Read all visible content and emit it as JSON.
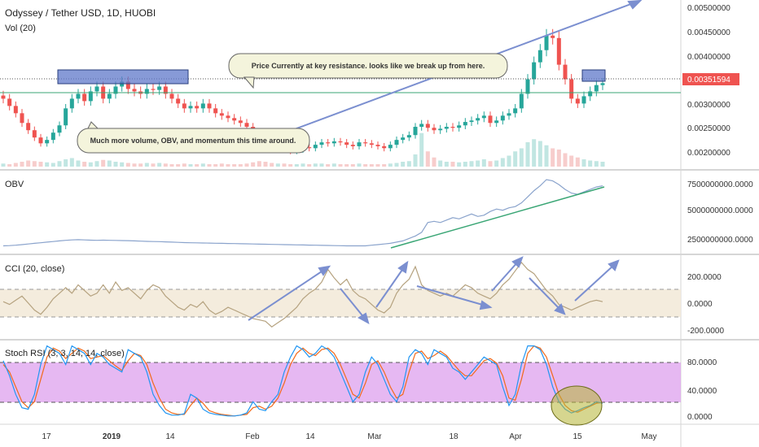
{
  "header": {
    "title": "Odyssey / Tether USD, 1D, HUOBI",
    "volume_label": "Vol (20)"
  },
  "price_tag": "0.00351594",
  "annotations": {
    "resistance_note": "Price Currently at key resistance. looks like we break up from here.",
    "volume_note": "Much more volume, OBV, and momentum this time around."
  },
  "indicators": {
    "obv_label": "OBV",
    "cci_label": "CCI (20, close)",
    "stoch_label": "Stoch RSI (3, 3, 14, 14, close)"
  },
  "time_axis": [
    "17",
    "2019",
    "14",
    "Feb",
    "14",
    "Mar",
    "18",
    "Apr",
    "15",
    "May"
  ],
  "colors": {
    "up": "#26a69a",
    "down": "#ef5350",
    "trend_blue": "#7b8fd0",
    "trend_green": "#3aa675",
    "cci_band": "#f3ead9",
    "stoch_band": "#dda0ee",
    "price_tag": "#ef5350"
  },
  "chart_data": [
    {
      "type": "candlestick",
      "panel": "price",
      "y_ticks": [
        "0.00500000",
        "0.00450000",
        "0.00400000",
        "0.00300000",
        "0.00250000",
        "0.00200000"
      ],
      "ylim": [
        0.0018,
        0.0052
      ],
      "key_levels": [
        0.0035,
        0.0032
      ],
      "last_price": 0.00351594,
      "closes": [
        0.0032,
        0.00305,
        0.0029,
        0.0027,
        0.00255,
        0.0024,
        0.00228,
        0.00235,
        0.0025,
        0.00265,
        0.003,
        0.0032,
        0.0033,
        0.00315,
        0.00335,
        0.00345,
        0.0032,
        0.0033,
        0.00345,
        0.00355,
        0.0034,
        0.00335,
        0.0033,
        0.0034,
        0.00338,
        0.00345,
        0.0033,
        0.0032,
        0.0031,
        0.003,
        0.00305,
        0.003,
        0.0031,
        0.003,
        0.0029,
        0.00285,
        0.0028,
        0.00275,
        0.0027,
        0.00262,
        0.00245,
        0.00228,
        0.0022,
        0.00215,
        0.0022,
        0.00218,
        0.00212,
        0.00215,
        0.0022,
        0.00218,
        0.00225,
        0.0023,
        0.00228,
        0.00232,
        0.0023,
        0.00225,
        0.00222,
        0.0023,
        0.00228,
        0.00225,
        0.00222,
        0.00218,
        0.00225,
        0.00235,
        0.0024,
        0.00245,
        0.00262,
        0.00268,
        0.0026,
        0.00255,
        0.00258,
        0.00262,
        0.0026,
        0.00265,
        0.00272,
        0.00275,
        0.0028,
        0.00285,
        0.0027,
        0.00275,
        0.00285,
        0.0029,
        0.003,
        0.0033,
        0.0036,
        0.00395,
        0.0042,
        0.0045,
        0.00445,
        0.0039,
        0.0036,
        0.0032,
        0.0031,
        0.00325,
        0.00335,
        0.00348,
        0.00352
      ],
      "volume_ylim": [
        0,
        100
      ],
      "volume": [
        5,
        4,
        6,
        8,
        10,
        9,
        8,
        7,
        6,
        9,
        12,
        14,
        10,
        8,
        7,
        9,
        11,
        10,
        8,
        7,
        6,
        5,
        5,
        6,
        5,
        6,
        5,
        4,
        4,
        5,
        4,
        4,
        5,
        4,
        4,
        5,
        4,
        4,
        4,
        5,
        7,
        9,
        8,
        6,
        5,
        5,
        4,
        4,
        5,
        4,
        5,
        5,
        4,
        5,
        4,
        4,
        4,
        5,
        4,
        4,
        4,
        4,
        5,
        6,
        8,
        9,
        20,
        55,
        25,
        15,
        10,
        8,
        8,
        7,
        8,
        9,
        10,
        12,
        9,
        10,
        14,
        18,
        25,
        30,
        40,
        45,
        42,
        35,
        30,
        28,
        22,
        18,
        15,
        12,
        10,
        9,
        8
      ]
    },
    {
      "type": "line",
      "panel": "obv",
      "y_ticks": [
        "7500000000.0000",
        "5000000000.0000",
        "2500000000.0000"
      ],
      "ylim": [
        1800000000,
        8300000000
      ],
      "values": [
        2300000000,
        2320000000,
        2350000000,
        2400000000,
        2450000000,
        2500000000,
        2550000000,
        2600000000,
        2650000000,
        2700000000,
        2750000000,
        2780000000,
        2800000000,
        2780000000,
        2760000000,
        2750000000,
        2760000000,
        2750000000,
        2740000000,
        2730000000,
        2720000000,
        2700000000,
        2680000000,
        2660000000,
        2650000000,
        2640000000,
        2620000000,
        2600000000,
        2580000000,
        2560000000,
        2550000000,
        2540000000,
        2530000000,
        2520000000,
        2510000000,
        2500000000,
        2490000000,
        2480000000,
        2470000000,
        2460000000,
        2450000000,
        2440000000,
        2430000000,
        2420000000,
        2410000000,
        2400000000,
        2390000000,
        2380000000,
        2370000000,
        2360000000,
        2350000000,
        2340000000,
        2330000000,
        2320000000,
        2310000000,
        2300000000,
        2300000000,
        2300000000,
        2300000000,
        2350000000,
        2400000000,
        2450000000,
        2500000000,
        2600000000,
        2700000000,
        2900000000,
        3100000000,
        3400000000,
        4200000000,
        4300000000,
        4200000000,
        4400000000,
        4600000000,
        4500000000,
        4700000000,
        4900000000,
        4700000000,
        4800000000,
        5100000000,
        5300000000,
        5200000000,
        5400000000,
        5500000000,
        5800000000,
        6300000000,
        6800000000,
        7200000000,
        7700000000,
        7600000000,
        7300000000,
        6900000000,
        6600000000,
        6500000000,
        6700000000,
        6900000000,
        7100000000,
        7200000000
      ]
    },
    {
      "type": "line",
      "panel": "cci",
      "y_ticks": [
        "200.0000",
        "0.0000",
        "-200.0000"
      ],
      "ylim": [
        -260,
        320
      ],
      "band": [
        -100,
        100
      ],
      "values": [
        0,
        -20,
        10,
        40,
        -10,
        -60,
        -90,
        -40,
        20,
        60,
        100,
        60,
        120,
        80,
        40,
        60,
        120,
        60,
        140,
        80,
        100,
        60,
        20,
        80,
        120,
        100,
        40,
        0,
        -40,
        -60,
        -20,
        -40,
        0,
        -60,
        -90,
        -70,
        -40,
        -60,
        -80,
        -100,
        -120,
        -130,
        -140,
        -180,
        -150,
        -120,
        -80,
        -40,
        20,
        60,
        90,
        140,
        230,
        170,
        120,
        160,
        80,
        40,
        20,
        -20,
        -60,
        -80,
        -40,
        60,
        120,
        160,
        250,
        120,
        80,
        60,
        40,
        60,
        40,
        80,
        120,
        100,
        60,
        40,
        20,
        60,
        120,
        160,
        220,
        280,
        230,
        200,
        140,
        80,
        40,
        -20,
        -40,
        -60,
        -40,
        -20,
        0,
        10,
        0
      ]
    },
    {
      "type": "line",
      "panel": "stoch_rsi",
      "y_ticks": [
        "80.0000",
        "40.0000",
        "0.0000"
      ],
      "ylim": [
        -8,
        100
      ],
      "band": [
        20,
        80
      ],
      "series_k": [
        75,
        55,
        30,
        12,
        10,
        30,
        70,
        95,
        90,
        85,
        70,
        95,
        90,
        85,
        70,
        85,
        80,
        70,
        65,
        60,
        90,
        85,
        80,
        60,
        30,
        15,
        5,
        2,
        2,
        4,
        30,
        25,
        10,
        5,
        3,
        2,
        1,
        1,
        2,
        5,
        20,
        10,
        8,
        20,
        30,
        60,
        80,
        95,
        90,
        80,
        85,
        95,
        90,
        80,
        60,
        40,
        20,
        30,
        60,
        80,
        70,
        50,
        30,
        20,
        40,
        80,
        90,
        85,
        70,
        90,
        85,
        80,
        65,
        60,
        50,
        60,
        70,
        80,
        75,
        70,
        40,
        15,
        30,
        70,
        95,
        95,
        90,
        70,
        40,
        20,
        10,
        5,
        8,
        12,
        15,
        20,
        18
      ],
      "series_d": [
        70,
        60,
        40,
        20,
        12,
        20,
        50,
        80,
        92,
        88,
        78,
        85,
        92,
        88,
        78,
        80,
        82,
        75,
        68,
        62,
        75,
        85,
        82,
        70,
        45,
        25,
        10,
        5,
        3,
        3,
        15,
        25,
        18,
        8,
        5,
        3,
        2,
        1,
        2,
        3,
        12,
        14,
        10,
        14,
        25,
        45,
        70,
        85,
        92,
        85,
        82,
        90,
        92,
        85,
        70,
        50,
        30,
        25,
        45,
        70,
        75,
        60,
        40,
        25,
        30,
        60,
        85,
        88,
        78,
        82,
        88,
        82,
        72,
        62,
        55,
        55,
        65,
        75,
        78,
        72,
        55,
        25,
        22,
        50,
        85,
        95,
        92,
        80,
        55,
        30,
        15,
        8,
        6,
        10,
        14,
        18,
        19
      ]
    }
  ]
}
